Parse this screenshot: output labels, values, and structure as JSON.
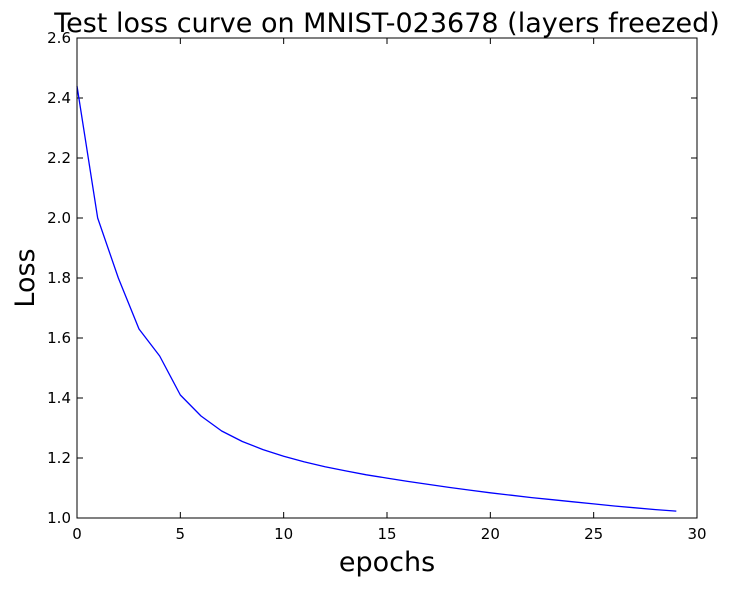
{
  "chart_data": {
    "type": "line",
    "title": "Test loss curve on MNIST-023678 (layers freezed)",
    "xlabel": "epochs",
    "ylabel": "Loss",
    "xlim": [
      0,
      30
    ],
    "ylim": [
      1.0,
      2.6
    ],
    "grid": false,
    "legend": "none",
    "xticks": [
      0,
      5,
      10,
      15,
      20,
      25,
      30
    ],
    "yticks": [
      1.0,
      1.2,
      1.4,
      1.6,
      1.8,
      2.0,
      2.2,
      2.4,
      2.6
    ],
    "xtick_labels": [
      "0",
      "5",
      "10",
      "15",
      "20",
      "25",
      "30"
    ],
    "ytick_labels": [
      "1.0",
      "1.2",
      "1.4",
      "1.6",
      "1.8",
      "2.0",
      "2.2",
      "2.4",
      "2.6"
    ],
    "series": [
      {
        "color": "#0000ff",
        "x": [
          0,
          1,
          2,
          3,
          4,
          5,
          6,
          7,
          8,
          9,
          10,
          11,
          12,
          13,
          14,
          15,
          16,
          17,
          18,
          19,
          20,
          21,
          22,
          23,
          24,
          25,
          26,
          27,
          28,
          29
        ],
        "values": [
          2.44,
          2.0,
          1.8,
          1.63,
          1.54,
          1.41,
          1.34,
          1.29,
          1.255,
          1.228,
          1.206,
          1.187,
          1.171,
          1.157,
          1.144,
          1.133,
          1.122,
          1.112,
          1.102,
          1.093,
          1.084,
          1.076,
          1.068,
          1.061,
          1.054,
          1.047,
          1.04,
          1.034,
          1.028,
          1.023
        ]
      }
    ]
  }
}
